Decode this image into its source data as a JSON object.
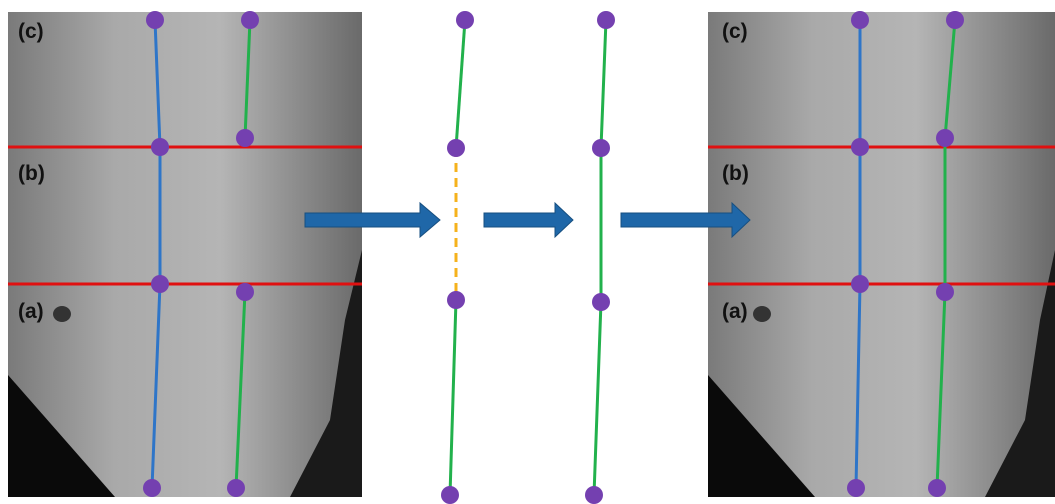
{
  "panels": [
    {
      "labels": [
        "(c)",
        "(b)",
        "(a)"
      ]
    },
    {
      "labels": [
        "(c)",
        "(b)",
        "(a)"
      ]
    }
  ]
}
